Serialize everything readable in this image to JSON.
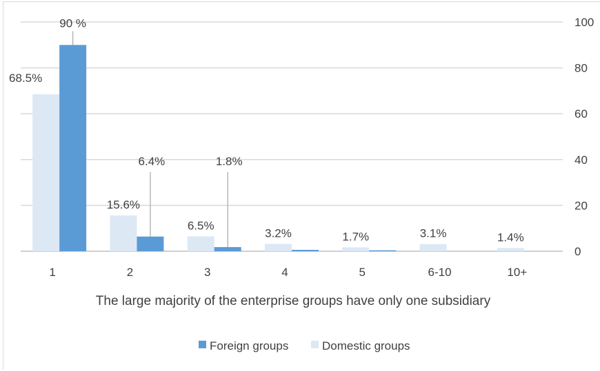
{
  "chart_data": {
    "type": "bar",
    "categories": [
      "1",
      "2",
      "3",
      "4",
      "5",
      "6-10",
      "10+"
    ],
    "series": [
      {
        "name": "Domestic groups",
        "color": "#dde8f5",
        "values": [
          68.5,
          15.6,
          6.5,
          3.2,
          1.7,
          3.1,
          1.4
        ],
        "labels": [
          "68.5%",
          "15.6%",
          "6.5%",
          "3.2%",
          "1.7%",
          "3.1%",
          "1.4%"
        ]
      },
      {
        "name": "Foreign groups",
        "color": "#5b9bd5",
        "values": [
          90,
          6.4,
          1.8,
          0.6,
          0.4,
          0,
          0
        ],
        "labels": [
          "90 %",
          "6.4%",
          "1.8%",
          "",
          "",
          "",
          ""
        ]
      }
    ],
    "xlabel": "The large majority of the enterprise groups have only one subsidiary",
    "ylabel": "",
    "ylim": [
      0,
      100
    ],
    "yticks": [
      0,
      20,
      40,
      60,
      80,
      100
    ],
    "y_axis_side": "right",
    "grid": true,
    "legend_placement": "bottom",
    "legend": [
      "Foreign groups",
      "Domestic groups"
    ]
  }
}
